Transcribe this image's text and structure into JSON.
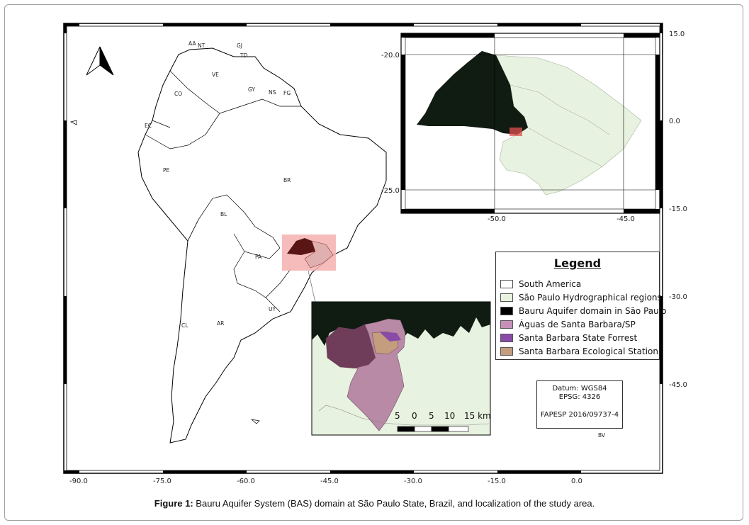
{
  "map": {
    "main_x_ticks": [
      "-90.0",
      "-75.0",
      "-60.0",
      "-45.0",
      "-30.0",
      "-15.0",
      "0.0"
    ],
    "main_y_ticks": [
      "15.0",
      "0.0",
      "-15.0",
      "-30.0",
      "-45.0"
    ],
    "inset_x_ticks": [
      "-50.0",
      "-45.0"
    ],
    "inset_y_ticks": [
      "-20.0",
      "-25.0"
    ],
    "country_labels": [
      "AA",
      "NT",
      "GJ",
      "TD",
      "VE",
      "CO",
      "GY",
      "NS",
      "FG",
      "EC",
      "PE",
      "BR",
      "BL",
      "PA",
      "UY",
      "CL",
      "AR",
      "BV"
    ],
    "scale_bar": {
      "labels": [
        "5",
        "0",
        "5",
        "10",
        "15 km"
      ]
    },
    "colors": {
      "south_america": "#ffffff",
      "hydro_regions": "#e8f2e0",
      "bauru_aquifer": "#101b12",
      "aguas_santa_barbara": "#b88aa6",
      "state_forrest": "#8a4aa8",
      "ecological_station": "#c49c7e",
      "highlight_box": "#f5b0b0"
    }
  },
  "legend": {
    "title": "Legend",
    "items": [
      {
        "label": "South America",
        "color": "#ffffff"
      },
      {
        "label": "São Paulo Hydrographical regions",
        "color": "#e8f2e0"
      },
      {
        "label": "Bauru Aquifer domain in São Paulo",
        "color": "#000000"
      },
      {
        "label": "Águas de Santa Barbara/SP",
        "color": "#c690b8"
      },
      {
        "label": "Santa Barbara State Forrest",
        "color": "#8a4aa8"
      },
      {
        "label": "Santa Barbara Ecological Station",
        "color": "#c49c7e"
      }
    ]
  },
  "datum": {
    "line1": "Datum: WGS84",
    "line2": "EPSG: 4326",
    "line3": "FAPESP 2016/09737-4"
  },
  "caption": {
    "prefix": "Figure 1:",
    "text": " Bauru Aquifer System (BAS) domain at São Paulo State, Brazil, and localization of the study area."
  }
}
